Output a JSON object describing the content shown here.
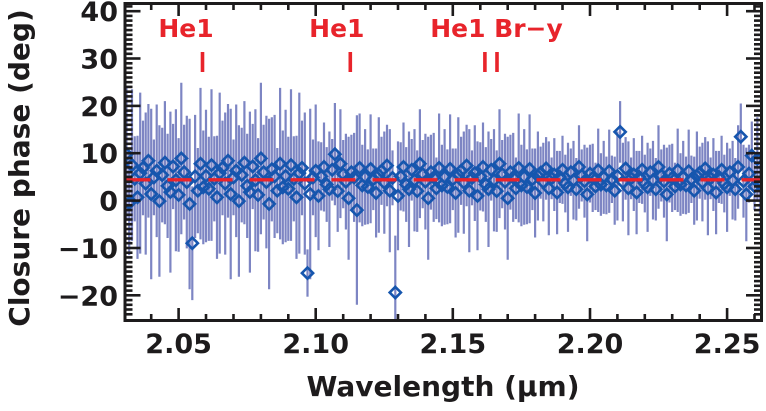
{
  "figure": {
    "background": "#ffffff",
    "axis_color": "#1d1b1c",
    "annotation_color": "#e8242b"
  },
  "chart_data": {
    "type": "scatter",
    "title": "",
    "xlabel": "Wavelength (μm)",
    "ylabel": "Closure phase (deg)",
    "xlim": [
      2.031,
      2.262
    ],
    "ylim": [
      -25.0,
      41.3
    ],
    "grid": false,
    "legend": "none",
    "x_ticks_major": [
      2.05,
      2.1,
      2.15,
      2.2,
      2.25
    ],
    "x_tick_labels": [
      "2.05",
      "2.10",
      "2.15",
      "2.20",
      "2.25"
    ],
    "x_minor_step": 0.01,
    "y_ticks_major": [
      40,
      30,
      20,
      10,
      0,
      -10,
      -20
    ],
    "y_tick_labels": [
      "40",
      "30",
      "20",
      "10",
      "0",
      "−10",
      "−20"
    ],
    "y_minor_step": 1,
    "mean_line": {
      "value": 4.4,
      "style": "dashed",
      "color": "#e8242b"
    },
    "annotations": [
      {
        "label": "He1",
        "label_x": 2.0527,
        "lines": [
          2.0587
        ]
      },
      {
        "label": "He1",
        "label_x": 2.1077,
        "lines": [
          2.1126
        ]
      },
      {
        "label": "He1 Br−y",
        "label_x": 2.1659,
        "lines": [
          2.1617,
          2.1661
        ]
      }
    ],
    "series": {
      "name": "closure-phase-spectrum",
      "marker": "open-diamond",
      "marker_color": "#1656ae",
      "errorbar_color": "#7d85c3",
      "x_start": 2.031,
      "x_step": 0.001,
      "y": [
        9.8,
        -0.5,
        7.5,
        4.6,
        0.7,
        5.8,
        6.9,
        3.6,
        8.4,
        1.4,
        4.9,
        6.3,
        -0.1,
        5.4,
        8.0,
        3.1,
        1.8,
        7.2,
        4.3,
        1.2,
        8.9,
        6.0,
        3.9,
        -0.7,
        -9.0,
        5.1,
        2.1,
        7.8,
        2.8,
        5.2,
        2.5,
        7.5,
        4.6,
        0.7,
        5.8,
        6.9,
        3.6,
        8.4,
        1.4,
        4.9,
        6.3,
        -0.1,
        5.4,
        8.0,
        3.1,
        1.8,
        7.2,
        4.3,
        1.2,
        8.9,
        6.0,
        3.9,
        -0.7,
        6.6,
        5.1,
        2.1,
        7.8,
        2.8,
        5.2,
        2.5,
        7.5,
        4.6,
        0.7,
        5.8,
        6.9,
        3.6,
        -15.3,
        1.4,
        4.9,
        6.3,
        1.0,
        5.1,
        7.1,
        3.4,
        2.4,
        6.5,
        9.8,
        2.0,
        7.8,
        5.6,
        4.0,
        0.5,
        6.0,
        4.9,
        -2.0,
        6.9,
        3.2,
        5.0,
        2.9,
        6.7,
        4.5,
        1.6,
        5.4,
        6.3,
        3.8,
        7.4,
        2.1,
        4.8,
        -19.4,
        1.0,
        5.1,
        7.1,
        3.4,
        2.4,
        6.5,
        4.3,
        2.0,
        7.8,
        5.6,
        4.0,
        0.5,
        6.0,
        4.9,
        2.6,
        6.9,
        3.2,
        5.0,
        2.9,
        6.7,
        4.5,
        1.6,
        5.4,
        6.3,
        3.8,
        7.4,
        2.1,
        4.8,
        5.8,
        1.0,
        5.1,
        7.1,
        3.4,
        2.4,
        6.5,
        4.3,
        2.0,
        7.8,
        5.6,
        4.0,
        0.5,
        6.0,
        4.9,
        2.6,
        6.9,
        3.2,
        5.0,
        2.9,
        6.7,
        4.5,
        1.6,
        5.2,
        5.9,
        3.9,
        6.8,
        2.6,
        4.7,
        5.5,
        1.7,
        5.0,
        6.5,
        3.6,
        2.8,
        6.0,
        4.3,
        2.4,
        7.1,
        5.3,
        4.1,
        1.3,
        5.7,
        4.8,
        3.0,
        6.4,
        3.4,
        4.9,
        3.2,
        6.2,
        4.5,
        2.1,
        5.2,
        14.5,
        3.9,
        6.8,
        2.6,
        4.7,
        5.5,
        1.7,
        5.0,
        6.5,
        3.6,
        2.8,
        6.0,
        4.3,
        2.4,
        7.1,
        5.3,
        4.1,
        1.3,
        5.7,
        4.8,
        3.0,
        6.4,
        3.4,
        4.9,
        3.2,
        6.2,
        4.5,
        2.1,
        5.2,
        5.9,
        3.9,
        6.8,
        2.6,
        4.7,
        5.5,
        1.7,
        5.0,
        6.5,
        3.6,
        2.8,
        6.0,
        4.3,
        2.4,
        7.1,
        13.5,
        4.1,
        1.3,
        5.7,
        9.5,
        3.0,
        8.8,
        3.4
      ],
      "err": [
        14,
        11,
        16,
        9,
        13,
        17,
        10,
        15,
        12,
        18,
        8,
        14,
        16,
        10,
        13,
        11,
        17,
        9,
        15,
        12,
        16,
        10,
        14,
        18,
        12,
        13,
        9,
        16,
        12,
        14,
        11,
        16,
        9,
        13,
        17,
        10,
        15,
        12,
        18,
        8,
        14,
        16,
        10,
        13,
        11,
        17,
        9,
        15,
        12,
        16,
        10,
        14,
        18,
        11,
        13,
        9,
        16,
        12,
        14,
        11,
        16,
        9,
        13,
        17,
        10,
        15,
        5,
        18,
        8,
        14,
        11.5,
        7.2,
        9.4,
        7.9,
        12.2,
        6.5,
        10.8,
        8.6,
        11.5,
        7.2,
        10.1,
        13,
        7.9,
        9.4,
        20,
        11.5,
        8.6,
        10.1,
        7.9,
        11.5,
        6.5,
        9.4,
        12.2,
        7.2,
        10.8,
        8.6,
        13,
        5.8,
        12,
        11.5,
        7.2,
        9.4,
        7.9,
        12.2,
        6.5,
        10.8,
        8.6,
        11.5,
        7.2,
        10.1,
        13,
        7.9,
        9.4,
        6.5,
        11.5,
        8.6,
        10.1,
        7.9,
        11.5,
        6.5,
        9.4,
        12.2,
        7.2,
        10.8,
        8.6,
        13,
        5.8,
        10.1,
        11.5,
        7.2,
        9.4,
        7.9,
        12.2,
        6.5,
        10.8,
        8.6,
        11.5,
        7.2,
        10.1,
        13,
        7.9,
        9.4,
        6.5,
        11.5,
        8.6,
        10.1,
        7.9,
        11.5,
        6.5,
        9.4,
        9.4,
        5.5,
        8.3,
        6.6,
        9.9,
        4.4,
        7.7,
        8.8,
        5.5,
        7.2,
        6.1,
        9.4,
        5,
        8.3,
        6.6,
        8.8,
        5.5,
        7.7,
        9.9,
        6.1,
        7.2,
        5,
        8.8,
        6.6,
        7.7,
        6.1,
        8.8,
        5,
        7.2,
        9.4,
        6.5,
        8.3,
        6.6,
        9.9,
        4.4,
        7.7,
        8.8,
        5.5,
        7.2,
        6.1,
        9.4,
        5,
        8.3,
        6.6,
        8.8,
        5.5,
        7.7,
        9.9,
        6.1,
        7.2,
        5,
        8.8,
        6.6,
        7.7,
        6.1,
        8.8,
        5,
        7.2,
        9.4,
        5.5,
        8.3,
        6.6,
        9.9,
        4.4,
        7.7,
        8.8,
        5.5,
        7.2,
        6.1,
        9.4,
        5,
        8.3,
        6.6,
        8.8,
        7,
        7.7,
        9.9,
        6.1,
        7.2,
        5,
        8.8,
        6.6
      ]
    }
  }
}
